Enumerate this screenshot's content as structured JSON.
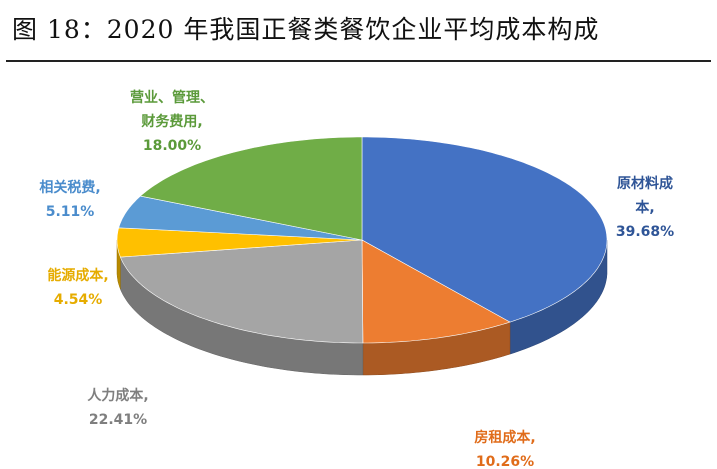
{
  "chart_data": {
    "type": "pie",
    "title": "图 18：2020 年我国正餐类餐饮企业平均成本构成",
    "categories": [
      "原材料成本,",
      "房租成本,",
      "人力成本,",
      "能源成本,",
      "相关税费,",
      "营业、管理、财务费用,"
    ],
    "values": [
      39.68,
      10.26,
      22.41,
      4.54,
      5.11,
      18.0
    ],
    "value_labels": [
      "39.68%",
      "10.26%",
      "22.41%",
      "4.54%",
      "5.11%",
      "18.00%"
    ],
    "colors": [
      "#4472c4",
      "#ed7d31",
      "#a5a5a5",
      "#ffc000",
      "#5b9bd5",
      "#70ad47"
    ]
  }
}
